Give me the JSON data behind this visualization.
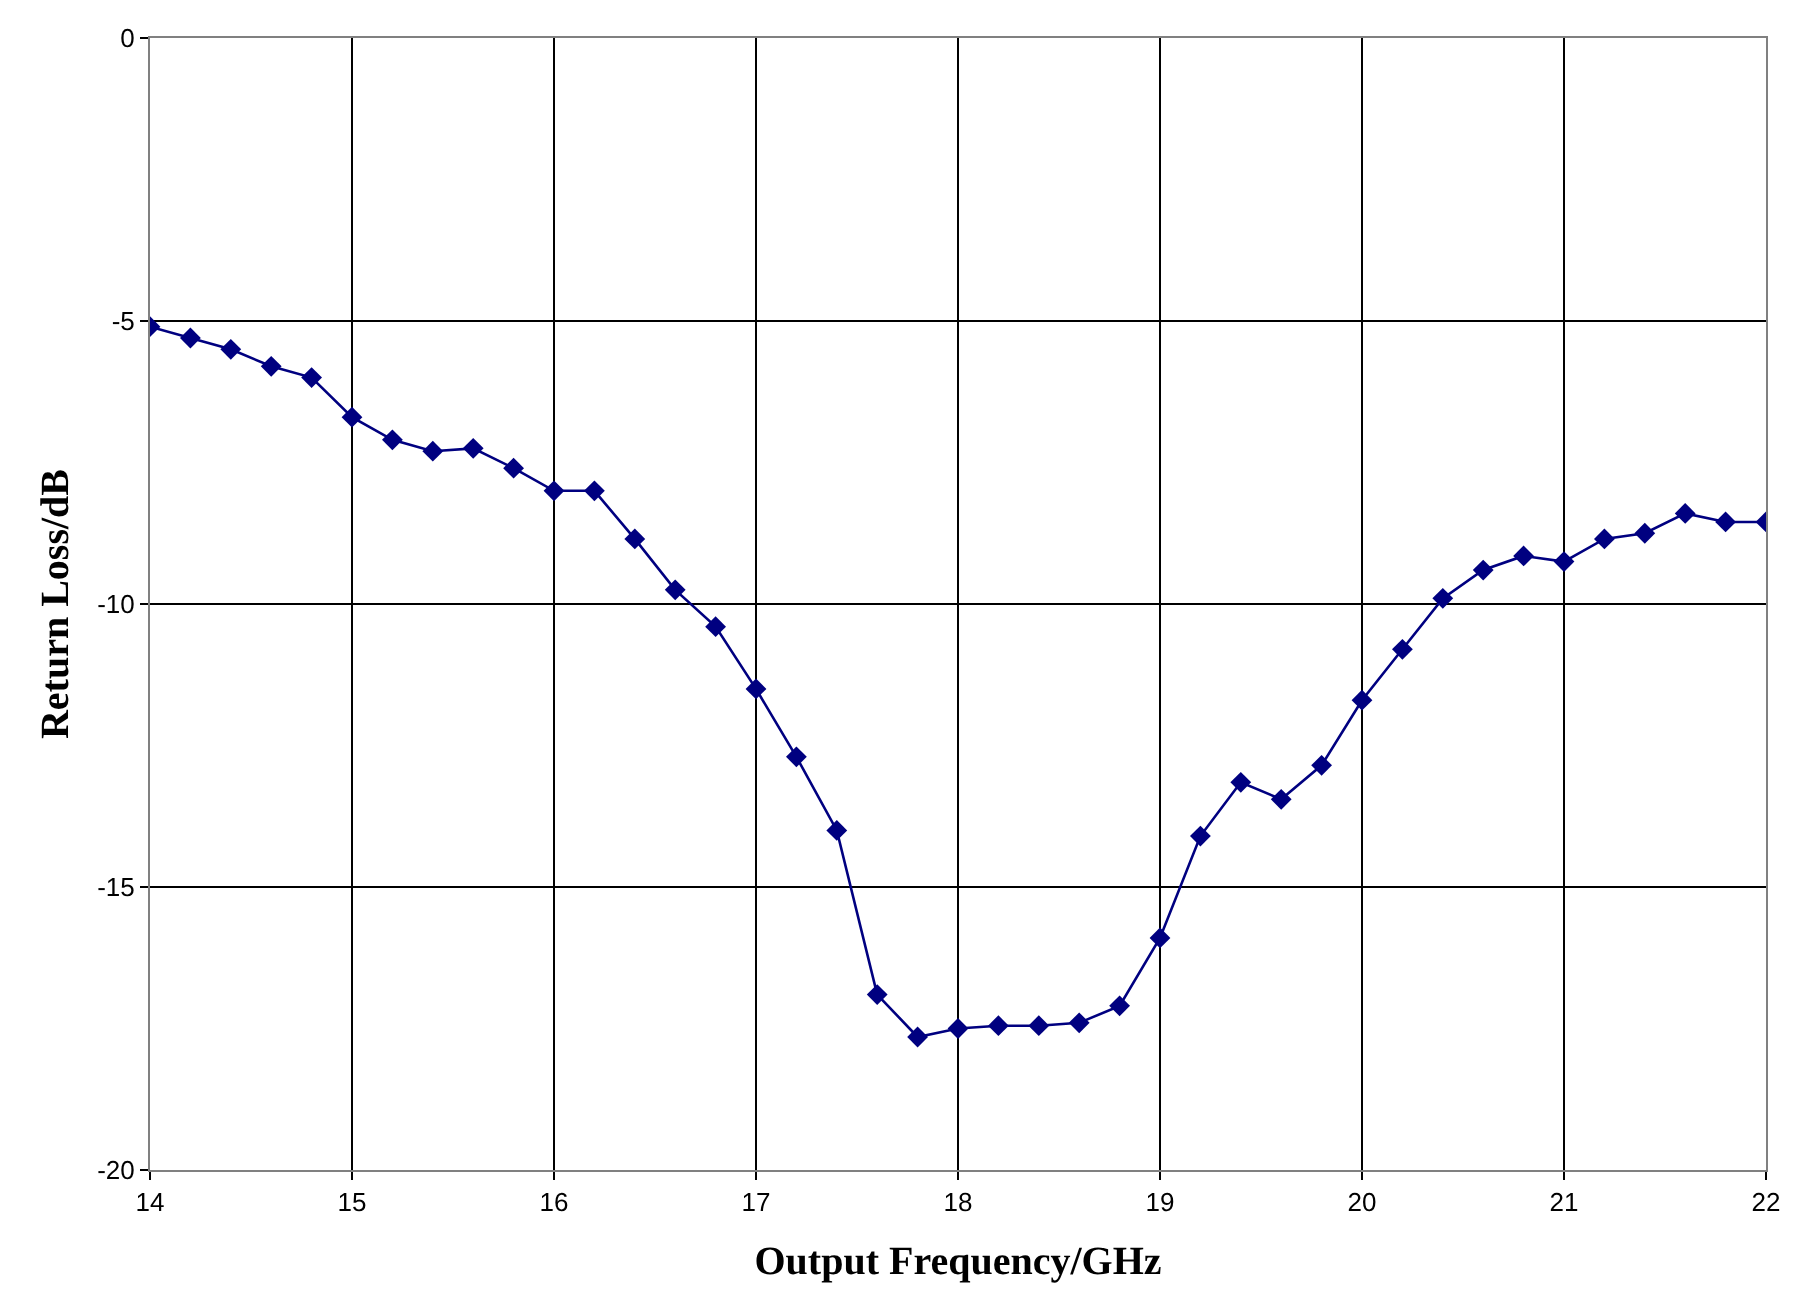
{
  "chart_data": {
    "type": "line",
    "xlabel": "Output Frequency/GHz",
    "ylabel": "Return Loss/dB",
    "x": [
      14.0,
      14.2,
      14.4,
      14.6,
      14.8,
      15.0,
      15.2,
      15.4,
      15.6,
      15.8,
      16.0,
      16.2,
      16.4,
      16.6,
      16.8,
      17.0,
      17.2,
      17.4,
      17.6,
      17.8,
      18.0,
      18.2,
      18.4,
      18.6,
      18.8,
      19.0,
      19.2,
      19.4,
      19.6,
      19.8,
      20.0,
      20.2,
      20.4,
      20.6,
      20.8,
      21.0,
      21.2,
      21.4,
      21.6,
      21.8,
      22.0
    ],
    "series": [
      {
        "color": "#000080",
        "values": [
          -5.1,
          -5.3,
          -5.5,
          -5.8,
          -6.0,
          -6.7,
          -7.1,
          -7.3,
          -7.25,
          -7.6,
          -8.0,
          -8.0,
          -8.85,
          -9.75,
          -10.4,
          -11.5,
          -12.7,
          -14.0,
          -16.9,
          -17.65,
          -17.5,
          -17.45,
          -17.45,
          -17.4,
          -17.1,
          -15.9,
          -14.1,
          -13.15,
          -13.45,
          -12.85,
          -11.7,
          -10.8,
          -9.9,
          -9.4,
          -9.15,
          -9.25,
          -8.85,
          -8.75,
          -8.4,
          -8.55,
          -8.55
        ]
      }
    ],
    "xlim": [
      14,
      22
    ],
    "xticks": [
      14,
      15,
      16,
      17,
      18,
      19,
      20,
      21,
      22
    ],
    "ylim": [
      -20,
      0
    ],
    "yticks": [
      -20,
      -15,
      -10,
      -5,
      0
    ],
    "grid": true,
    "marker": "diamond",
    "line_style": "solid"
  }
}
